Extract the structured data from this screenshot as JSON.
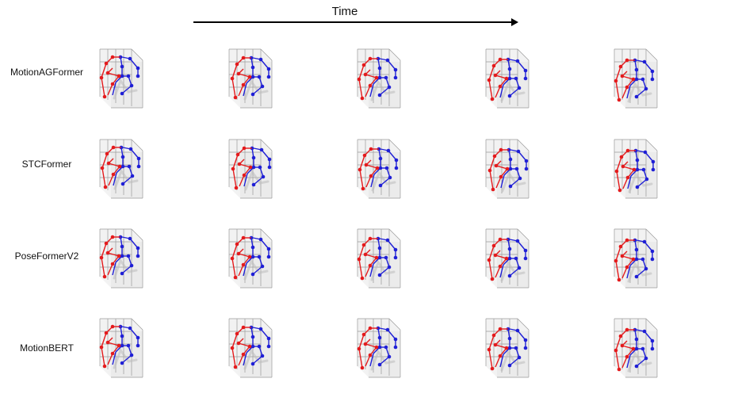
{
  "header": {
    "time_label": "Time"
  },
  "rows": [
    {
      "label": "MotionAGFormer"
    },
    {
      "label": "STCFormer"
    },
    {
      "label": "PoseFormerV2"
    },
    {
      "label": "MotionBERT"
    }
  ],
  "colors": {
    "left_side": "#e41a1c",
    "right_side": "#1f1fd6",
    "grid": "#9a9a9a",
    "shadow": "#bdbdbd",
    "arrow": "#000000"
  },
  "frames_per_row": 5
}
